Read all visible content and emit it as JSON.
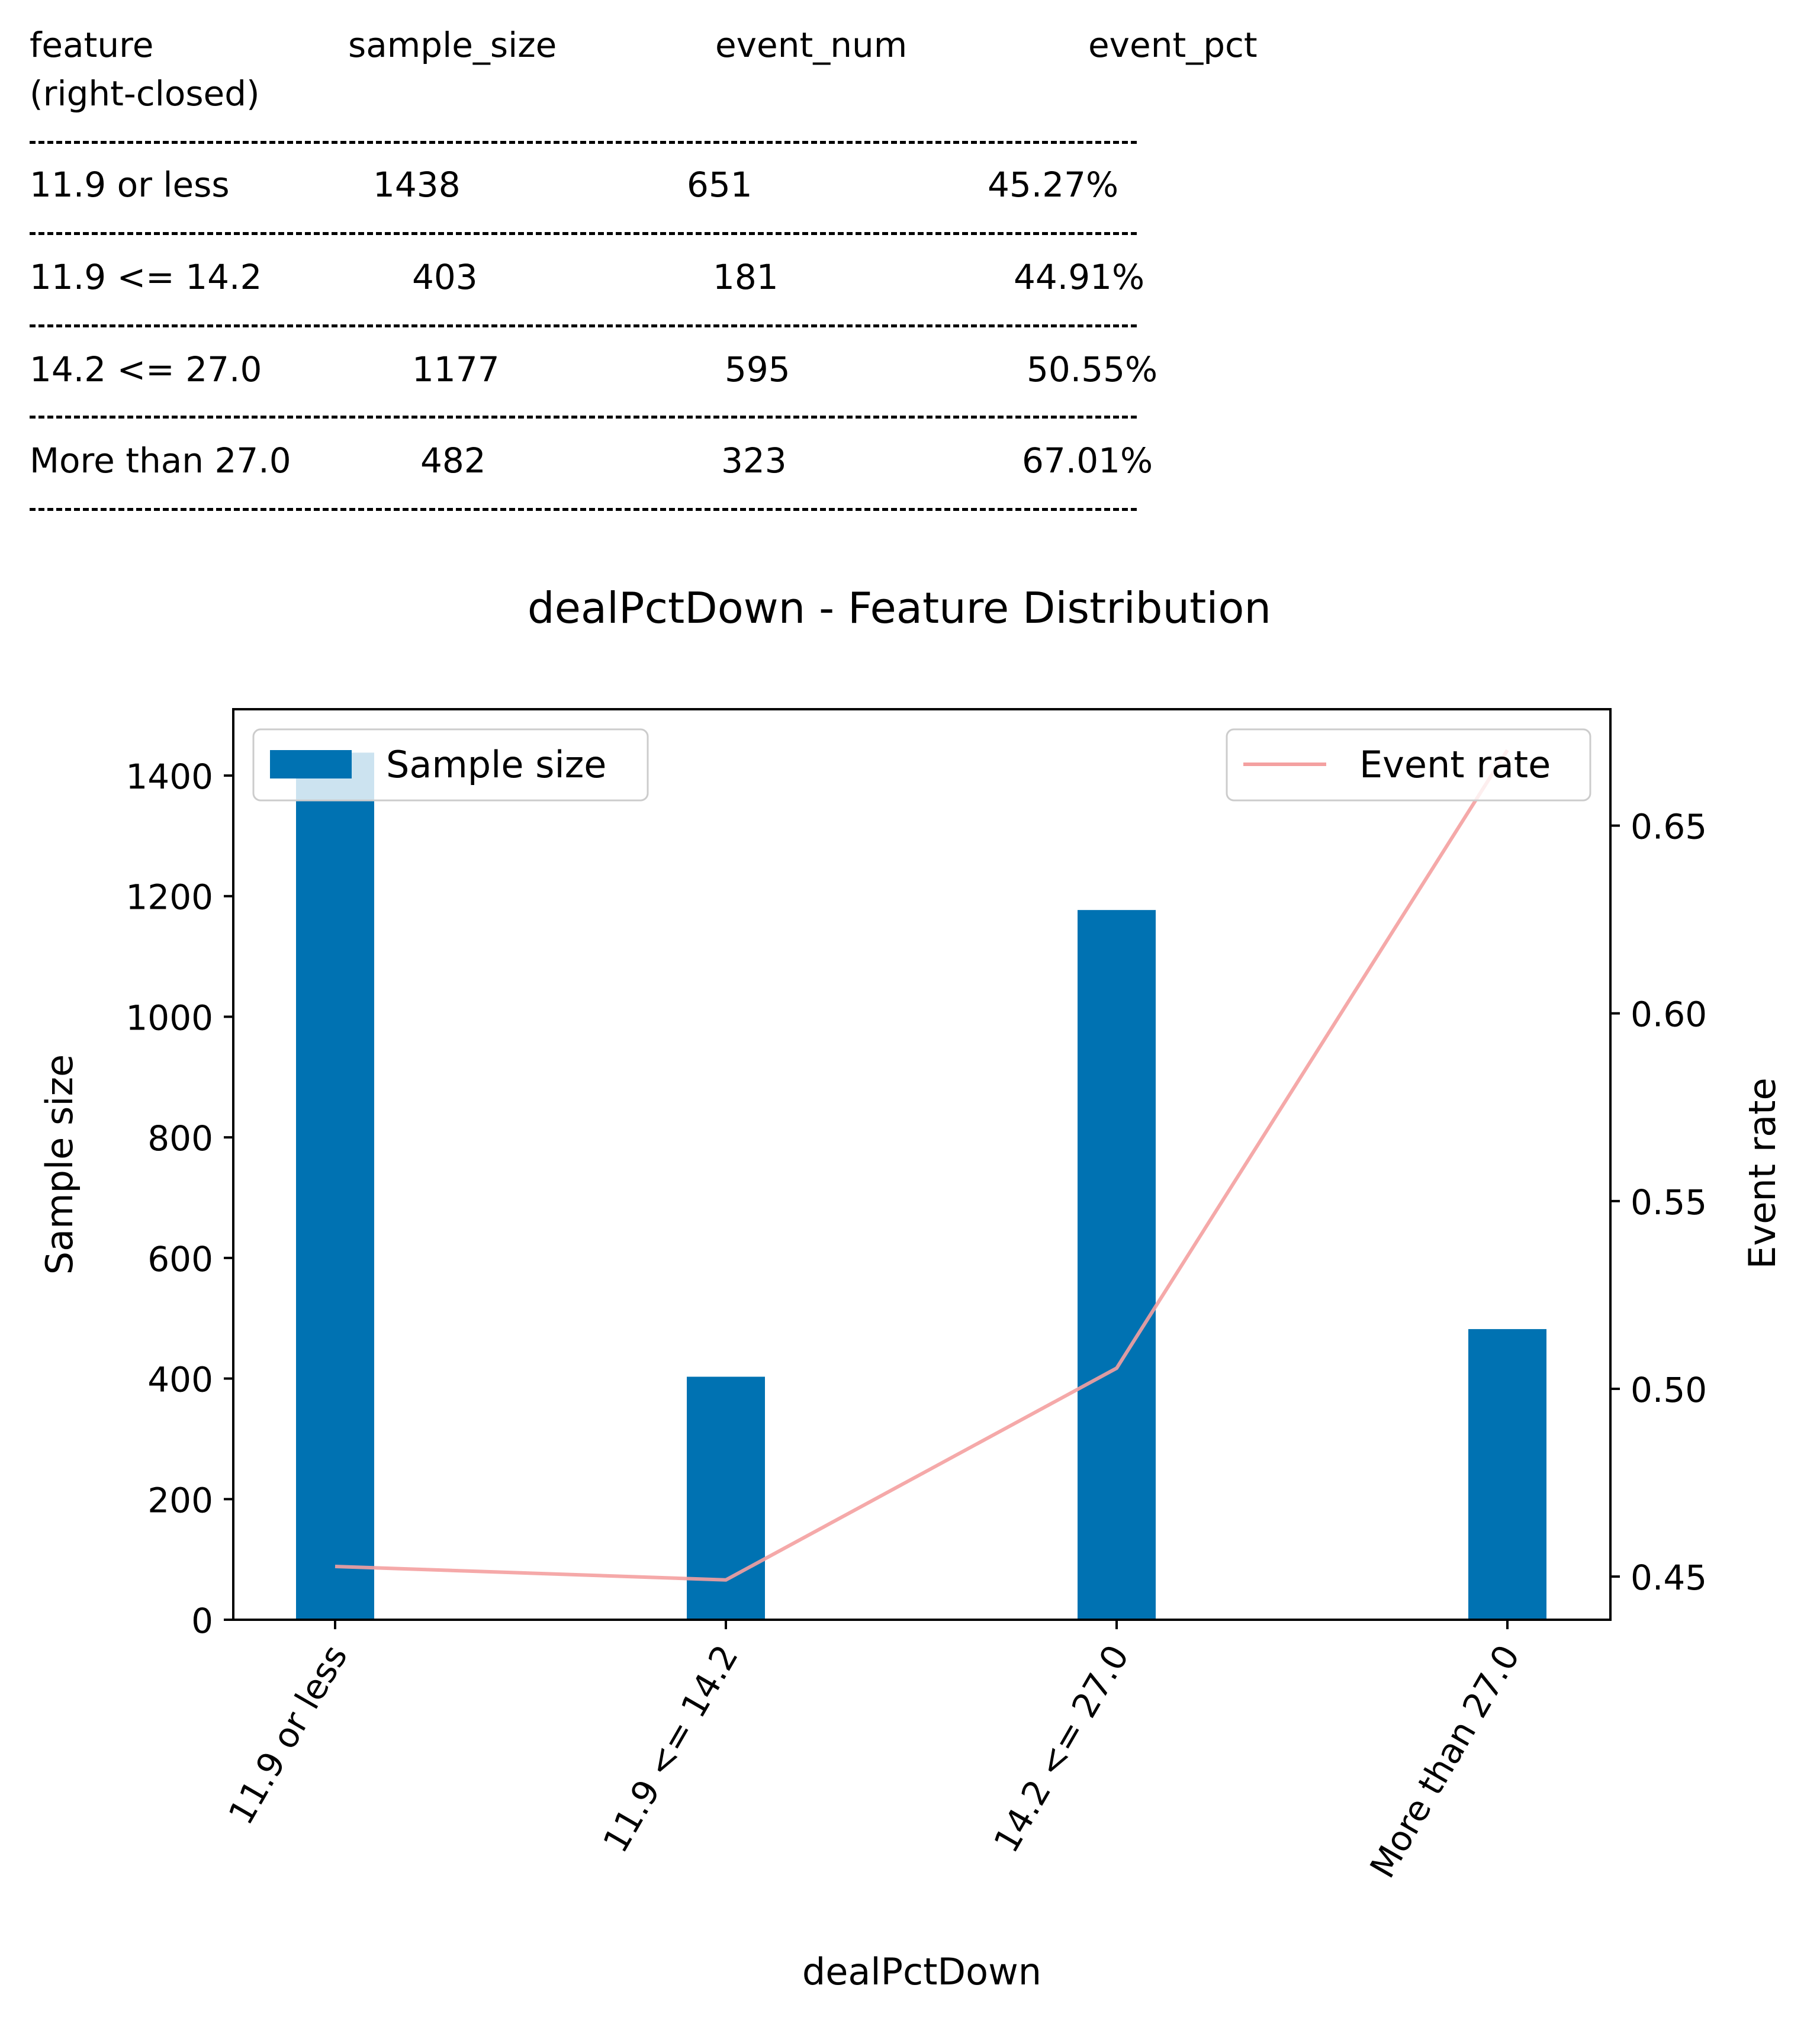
{
  "table": {
    "headers": {
      "feature": "feature",
      "feature_sub": "(right-closed)",
      "sample_size": "sample_size",
      "event_num": "event_num",
      "event_pct": "event_pct"
    },
    "rows": [
      {
        "feature": "11.9 or less",
        "sample_size": "1438",
        "event_num": "651",
        "event_pct": "45.27%"
      },
      {
        "feature": "11.9 <= 14.2",
        "sample_size": "403",
        "event_num": "181",
        "event_pct": "44.91%"
      },
      {
        "feature": "14.2 <= 27.0",
        "sample_size": "1177",
        "event_num": "595",
        "event_pct": "50.55%"
      },
      {
        "feature": "More than 27.0",
        "sample_size": "482",
        "event_num": "323",
        "event_pct": "67.01%"
      }
    ]
  },
  "chart_data": {
    "type": "bar",
    "title": "dealPctDown - Feature Distribution",
    "xlabel": "dealPctDown",
    "ylabel": "Sample size",
    "y2label": "Event rate",
    "categories": [
      "11.9 or less",
      "11.9 <= 14.2",
      "14.2 <= 27.0",
      "More than 27.0"
    ],
    "series": [
      {
        "name": "Sample size",
        "type": "bar",
        "axis": "left",
        "color": "#0072b2",
        "values": [
          1438,
          403,
          1177,
          482
        ]
      },
      {
        "name": "Event rate",
        "type": "line",
        "axis": "right",
        "color": "#f4a0a0",
        "values": [
          0.4527,
          0.4491,
          0.5055,
          0.6701
        ]
      }
    ],
    "ylim": [
      0,
      1510
    ],
    "y2lim": [
      0.4385,
      0.681
    ],
    "yticks": [
      0,
      200,
      400,
      600,
      800,
      1000,
      1200,
      1400
    ],
    "y2ticks": [
      0.45,
      0.5,
      0.55,
      0.6,
      0.65
    ],
    "y2tick_labels": [
      "0.45",
      "0.50",
      "0.55",
      "0.60",
      "0.65"
    ],
    "legend_left": "top-left",
    "legend_right": "top-right",
    "grid": false
  }
}
